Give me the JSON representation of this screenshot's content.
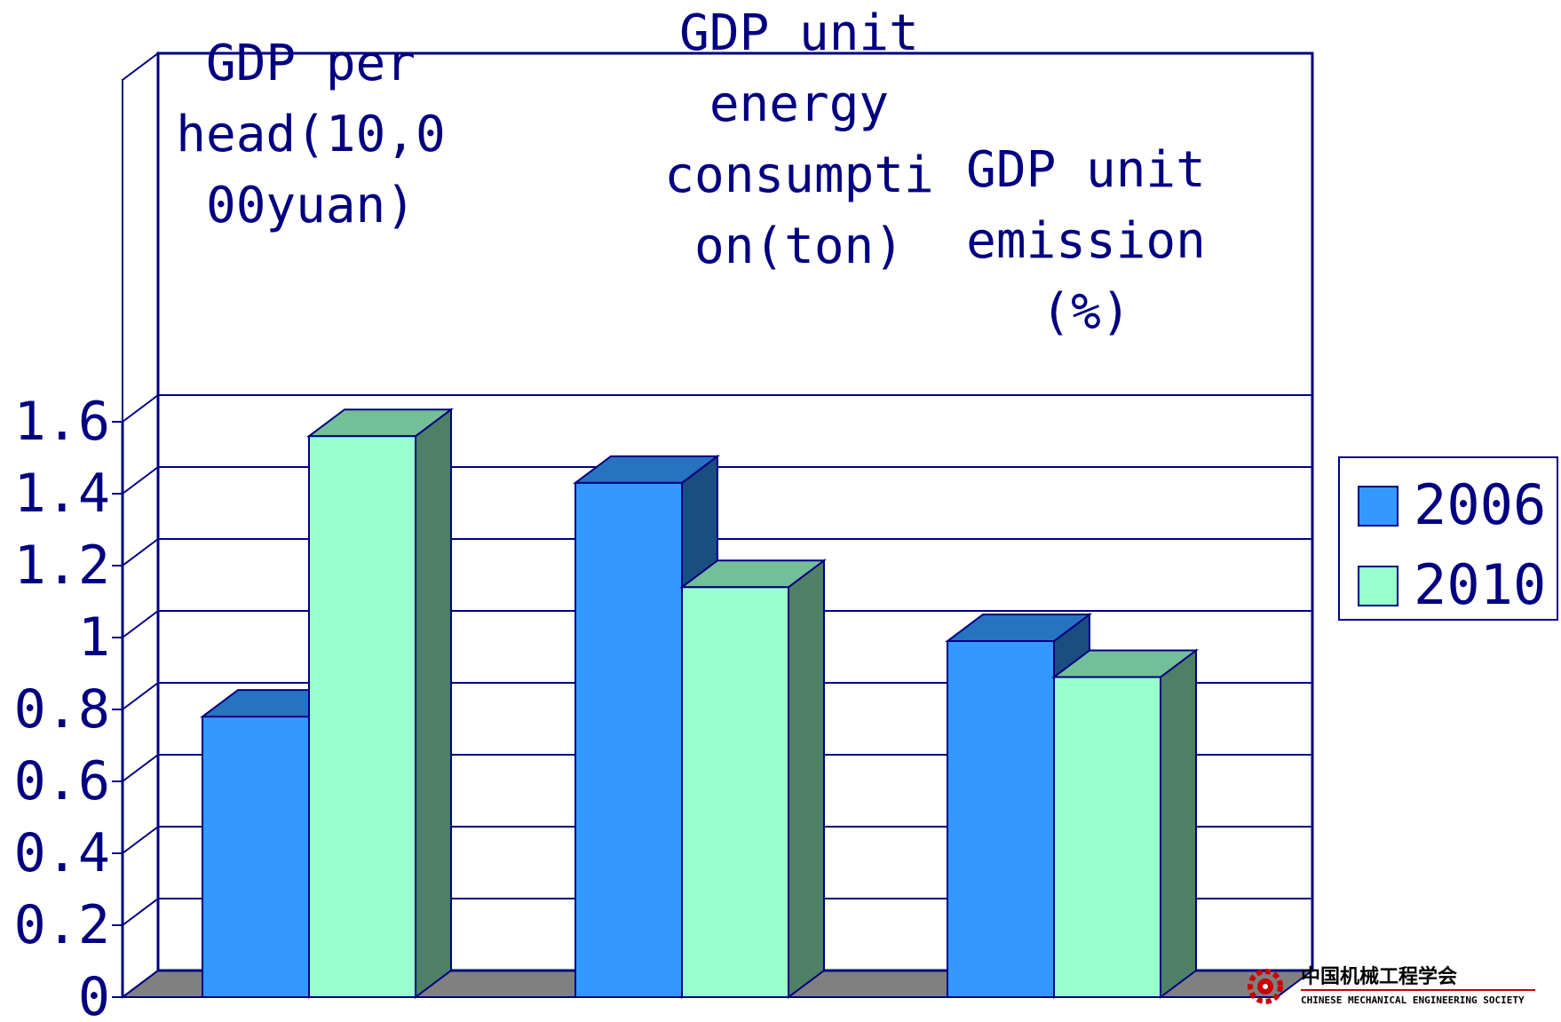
{
  "chart_data": {
    "type": "bar",
    "categories": [
      [
        "GDP per",
        "head(10,0",
        "00yuan)"
      ],
      [
        "GDP unit",
        "energy",
        "consumpti",
        "on(ton)"
      ],
      [
        "GDP unit",
        "emission",
        "(%)"
      ]
    ],
    "series": [
      {
        "name": "2006",
        "values": [
          0.78,
          1.43,
          0.99
        ],
        "color": "#3399FF"
      },
      {
        "name": "2010",
        "values": [
          1.56,
          1.14,
          0.89
        ],
        "color": "#99FFCC"
      }
    ],
    "ylim": [
      0,
      1.6
    ],
    "yticks": [
      "0",
      "0.2",
      "0.4",
      "0.6",
      "0.8",
      "1",
      "1.2",
      "1.4",
      "1.6"
    ],
    "grid": true,
    "legend": "right",
    "three_d": true
  },
  "logo": {
    "cn": "中国机械工程学会",
    "en": "CHINESE MECHANICAL ENGINEERING SOCIETY"
  },
  "colors": {
    "axis": "#000080",
    "floor": "#808080"
  }
}
